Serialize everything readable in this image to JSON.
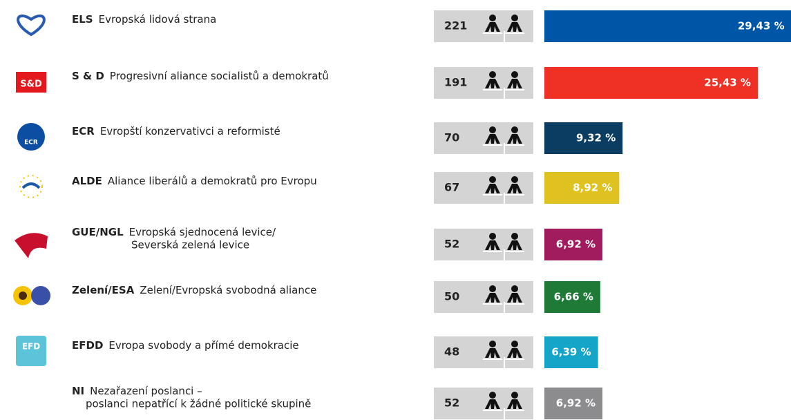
{
  "chart_data": {
    "type": "bar",
    "categories": [
      "ELS",
      "S & D",
      "ECR",
      "ALDE",
      "GUE/NGL",
      "Zelení/ESA",
      "EFDD",
      "NI"
    ],
    "descriptions": [
      [
        "Evropská lidová strana"
      ],
      [
        "Progresivní aliance socialistů a demokratů"
      ],
      [
        "Evropští konzervativci a reformisté"
      ],
      [
        "Aliance liberálů a demokratů pro Evropu"
      ],
      [
        "Evropská sjednocená levice/",
        "Severská zelená levice"
      ],
      [
        "Zelení/Evropská svobodná aliance"
      ],
      [
        "Evropa svobody a přímé demokracie"
      ],
      [
        "Nezařazení poslanci –",
        "poslanci nepatřící k žádné politické skupině"
      ]
    ],
    "seats": [
      221,
      191,
      70,
      67,
      52,
      50,
      48,
      52
    ],
    "values": [
      29.43,
      25.43,
      9.32,
      8.92,
      6.92,
      6.66,
      6.39,
      6.92
    ],
    "value_labels": [
      "29,43 %",
      "25,43 %",
      "9,32 %",
      "8,92 %",
      "6,92 %",
      "6,66 %",
      "6,39 %",
      "6,92 %"
    ],
    "colors": [
      "#0056a6",
      "#ee3124",
      "#0b3d63",
      "#dfc21f",
      "#a11b5f",
      "#1e7a36",
      "#14a5c9",
      "#8c8c8e"
    ],
    "logo_texts": [
      "S&D",
      "ECR",
      "EFD"
    ]
  }
}
